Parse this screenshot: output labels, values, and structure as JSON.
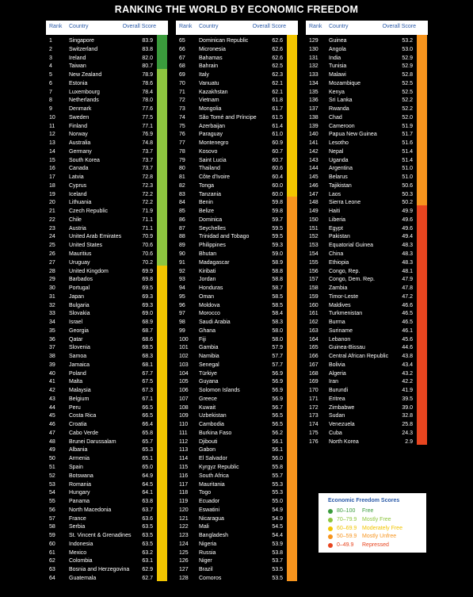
{
  "title": "RANKING THE WORLD BY ECONOMIC FREEDOM",
  "headers": [
    "Rank",
    "Country",
    "Overall Score"
  ],
  "columns": [
    [
      [
        "1",
        "Singapore",
        "83.9"
      ],
      [
        "2",
        "Switzerland",
        "83.8"
      ],
      [
        "3",
        "Ireland",
        "82.0"
      ],
      [
        "4",
        "Taiwan",
        "80.7"
      ],
      [
        "5",
        "New Zealand",
        "78.9"
      ],
      [
        "6",
        "Estonia",
        "78.6"
      ],
      [
        "7",
        "Luxembourg",
        "78.4"
      ],
      [
        "8",
        "Netherlands",
        "78.0"
      ],
      [
        "9",
        "Denmark",
        "77.6"
      ],
      [
        "10",
        "Sweden",
        "77.5"
      ],
      [
        "11",
        "Finland",
        "77.1"
      ],
      [
        "12",
        "Norway",
        "76.9"
      ],
      [
        "13",
        "Australia",
        "74.8"
      ],
      [
        "14",
        "Germany",
        "73.7"
      ],
      [
        "15",
        "South Korea",
        "73.7"
      ],
      [
        "16",
        "Canada",
        "73.7"
      ],
      [
        "17",
        "Latvia",
        "72.8"
      ],
      [
        "18",
        "Cyprus",
        "72.3"
      ],
      [
        "19",
        "Iceland",
        "72.2"
      ],
      [
        "20",
        "Lithuania",
        "72.2"
      ],
      [
        "21",
        "Czech Republic",
        "71.9"
      ],
      [
        "22",
        "Chile",
        "71.1"
      ],
      [
        "23",
        "Austria",
        "71.1"
      ],
      [
        "24",
        "United Arab Emirates",
        "70.9"
      ],
      [
        "25",
        "United States",
        "70.6"
      ],
      [
        "26",
        "Mauritius",
        "70.6"
      ],
      [
        "27",
        "Uruguay",
        "70.2"
      ],
      [
        "28",
        "United Kingdom",
        "69.9"
      ],
      [
        "29",
        "Barbados",
        "69.8"
      ],
      [
        "30",
        "Portugal",
        "69.5"
      ],
      [
        "31",
        "Japan",
        "69.3"
      ],
      [
        "32",
        "Bulgaria",
        "69.3"
      ],
      [
        "33",
        "Slovakia",
        "69.0"
      ],
      [
        "34",
        "Israel",
        "68.9"
      ],
      [
        "35",
        "Georgia",
        "68.7"
      ],
      [
        "36",
        "Qatar",
        "68.6"
      ],
      [
        "37",
        "Slovenia",
        "68.5"
      ],
      [
        "38",
        "Samoa",
        "68.3"
      ],
      [
        "39",
        "Jamaica",
        "68.1"
      ],
      [
        "40",
        "Poland",
        "67.7"
      ],
      [
        "41",
        "Malta",
        "67.5"
      ],
      [
        "42",
        "Malaysia",
        "67.3"
      ],
      [
        "43",
        "Belgium",
        "67.1"
      ],
      [
        "44",
        "Peru",
        "66.5"
      ],
      [
        "45",
        "Costa Rica",
        "66.5"
      ],
      [
        "46",
        "Croatia",
        "66.4"
      ],
      [
        "47",
        "Cabo Verde",
        "65.8"
      ],
      [
        "48",
        "Brunei Darussalam",
        "65.7"
      ],
      [
        "49",
        "Albania",
        "65.3"
      ],
      [
        "50",
        "Armenia",
        "65.1"
      ],
      [
        "51",
        "Spain",
        "65.0"
      ],
      [
        "52",
        "Botswana",
        "64.9"
      ],
      [
        "53",
        "Romania",
        "64.5"
      ],
      [
        "54",
        "Hungary",
        "64.1"
      ],
      [
        "55",
        "Panama",
        "63.8"
      ],
      [
        "56",
        "North Macedonia",
        "63.7"
      ],
      [
        "57",
        "France",
        "63.6"
      ],
      [
        "58",
        "Serbia",
        "63.5"
      ],
      [
        "59",
        "St. Vincent & Grenadines",
        "63.5"
      ],
      [
        "60",
        "Indonesia",
        "63.5"
      ],
      [
        "61",
        "Mexico",
        "63.2"
      ],
      [
        "62",
        "Colombia",
        "63.1"
      ],
      [
        "63",
        "Bosnia and Herzegovina",
        "62.9"
      ],
      [
        "64",
        "Guatemala",
        "62.7"
      ]
    ],
    [
      [
        "65",
        "Dominican Republic",
        "62.6"
      ],
      [
        "66",
        "Micronesia",
        "62.6"
      ],
      [
        "67",
        "Bahamas",
        "62.6"
      ],
      [
        "68",
        "Bahrain",
        "62.5"
      ],
      [
        "69",
        "Italy",
        "62.3"
      ],
      [
        "70",
        "Vanuatu",
        "62.1"
      ],
      [
        "71",
        "Kazakhstan",
        "62.1"
      ],
      [
        "72",
        "Vietnam",
        "61.8"
      ],
      [
        "73",
        "Mongolia",
        "61.7"
      ],
      [
        "74",
        "São Tomé and Príncipe",
        "61.5"
      ],
      [
        "75",
        "Azerbaijan",
        "61.4"
      ],
      [
        "76",
        "Paraguay",
        "61.0"
      ],
      [
        "77",
        "Montenegro",
        "60.9"
      ],
      [
        "78",
        "Kosovo",
        "60.7"
      ],
      [
        "79",
        "Saint Lucia",
        "60.7"
      ],
      [
        "80",
        "Thailand",
        "60.6"
      ],
      [
        "81",
        "Côte d'Ivoire",
        "60.4"
      ],
      [
        "82",
        "Tonga",
        "60.0"
      ],
      [
        "83",
        "Tanzania",
        "60.0"
      ],
      [
        "84",
        "Benin",
        "59.8"
      ],
      [
        "85",
        "Belize",
        "59.8"
      ],
      [
        "86",
        "Dominica",
        "59.7"
      ],
      [
        "87",
        "Seychelles",
        "59.5"
      ],
      [
        "88",
        "Trinidad and Tobago",
        "59.5"
      ],
      [
        "89",
        "Philippines",
        "59.3"
      ],
      [
        "90",
        "Bhutan",
        "59.0"
      ],
      [
        "91",
        "Madagascar",
        "58.9"
      ],
      [
        "92",
        "Kiribati",
        "58.8"
      ],
      [
        "93",
        "Jordan",
        "58.8"
      ],
      [
        "94",
        "Honduras",
        "58.7"
      ],
      [
        "95",
        "Oman",
        "58.5"
      ],
      [
        "96",
        "Moldova",
        "58.5"
      ],
      [
        "97",
        "Morocco",
        "58.4"
      ],
      [
        "98",
        "Saudi Arabia",
        "58.3"
      ],
      [
        "99",
        "Ghana",
        "58.0"
      ],
      [
        "100",
        "Fiji",
        "58.0"
      ],
      [
        "101",
        "Gambia",
        "57.9"
      ],
      [
        "102",
        "Namibia",
        "57.7"
      ],
      [
        "103",
        "Senegal",
        "57.7"
      ],
      [
        "104",
        "Türkiye",
        "56.9"
      ],
      [
        "105",
        "Guyana",
        "56.9"
      ],
      [
        "106",
        "Solomon Islands",
        "56.9"
      ],
      [
        "107",
        "Greece",
        "56.9"
      ],
      [
        "108",
        "Kuwait",
        "56.7"
      ],
      [
        "109",
        "Uzbekistan",
        "56.5"
      ],
      [
        "110",
        "Cambodia",
        "56.5"
      ],
      [
        "111",
        "Burkina Faso",
        "56.2"
      ],
      [
        "112",
        "Djibouti",
        "56.1"
      ],
      [
        "113",
        "Gabon",
        "56.1"
      ],
      [
        "114",
        "El Salvador",
        "56.0"
      ],
      [
        "115",
        "Kyrgyz Republic",
        "55.8"
      ],
      [
        "116",
        "South Africa",
        "55.7"
      ],
      [
        "117",
        "Mauritania",
        "55.3"
      ],
      [
        "118",
        "Togo",
        "55.3"
      ],
      [
        "119",
        "Ecuador",
        "55.0"
      ],
      [
        "120",
        "Eswatini",
        "54.9"
      ],
      [
        "121",
        "Nicaragua",
        "54.9"
      ],
      [
        "122",
        "Mali",
        "54.5"
      ],
      [
        "123",
        "Bangladesh",
        "54.4"
      ],
      [
        "124",
        "Nigeria",
        "53.9"
      ],
      [
        "125",
        "Russia",
        "53.8"
      ],
      [
        "126",
        "Niger",
        "53.7"
      ],
      [
        "127",
        "Brazil",
        "53.5"
      ],
      [
        "128",
        "Comoros",
        "53.5"
      ]
    ],
    [
      [
        "129",
        "Guinea",
        "53.2"
      ],
      [
        "130",
        "Angola",
        "53.0"
      ],
      [
        "131",
        "India",
        "52.9"
      ],
      [
        "132",
        "Tunisia",
        "52.9"
      ],
      [
        "133",
        "Malawi",
        "52.8"
      ],
      [
        "134",
        "Mozambique",
        "52.5"
      ],
      [
        "135",
        "Kenya",
        "52.5"
      ],
      [
        "136",
        "Sri Lanka",
        "52.2"
      ],
      [
        "137",
        "Rwanda",
        "52.2"
      ],
      [
        "138",
        "Chad",
        "52.0"
      ],
      [
        "139",
        "Cameroon",
        "51.9"
      ],
      [
        "140",
        "Papua New Guinea",
        "51.7"
      ],
      [
        "141",
        "Lesotho",
        "51.6"
      ],
      [
        "142",
        "Nepal",
        "51.4"
      ],
      [
        "143",
        "Uganda",
        "51.4"
      ],
      [
        "144",
        "Argentina",
        "51.0"
      ],
      [
        "145",
        "Belarus",
        "51.0"
      ],
      [
        "146",
        "Tajikistan",
        "50.6"
      ],
      [
        "147",
        "Laos",
        "50.3"
      ],
      [
        "148",
        "Sierra Leone",
        "50.2"
      ],
      [
        "149",
        "Haiti",
        "49.9"
      ],
      [
        "150",
        "Liberia",
        "49.6"
      ],
      [
        "151",
        "Egypt",
        "49.6"
      ],
      [
        "152",
        "Pakistan",
        "49.4"
      ],
      [
        "153",
        "Equatorial Guinea",
        "48.3"
      ],
      [
        "154",
        "China",
        "48.3"
      ],
      [
        "155",
        "Ethiopia",
        "48.3"
      ],
      [
        "156",
        "Congo, Rep.",
        "48.1"
      ],
      [
        "157",
        "Congo, Dem. Rep.",
        "47.9"
      ],
      [
        "158",
        "Zambia",
        "47.8"
      ],
      [
        "159",
        "Timor-Leste",
        "47.2"
      ],
      [
        "160",
        "Maldives",
        "46.6"
      ],
      [
        "161",
        "Turkmenistan",
        "46.5"
      ],
      [
        "162",
        "Burma",
        "46.5"
      ],
      [
        "163",
        "Suriname",
        "46.1"
      ],
      [
        "164",
        "Lebanon",
        "45.6"
      ],
      [
        "165",
        "Guinea-Bissau",
        "44.6"
      ],
      [
        "166",
        "Central African Republic",
        "43.8"
      ],
      [
        "167",
        "Bolivia",
        "43.4"
      ],
      [
        "168",
        "Algeria",
        "43.2"
      ],
      [
        "169",
        "Iran",
        "42.2"
      ],
      [
        "170",
        "Burundi",
        "41.9"
      ],
      [
        "171",
        "Eritrea",
        "39.5"
      ],
      [
        "172",
        "Zimbabwe",
        "39.0"
      ],
      [
        "173",
        "Sudan",
        "32.8"
      ],
      [
        "174",
        "Venezuela",
        "25.8"
      ],
      [
        "175",
        "Cuba",
        "24.3"
      ],
      [
        "176",
        "North Korea",
        "2.9"
      ]
    ]
  ],
  "legend": {
    "title": "Economic Freedom Scores",
    "items": [
      {
        "range": "80–100",
        "label": "Free",
        "color": "#3a9b3c"
      },
      {
        "range": "70–79.9",
        "label": "Mostly Free",
        "color": "#8dc63f"
      },
      {
        "range": "60–69.9",
        "label": "Moderately Free",
        "color": "#f2c500"
      },
      {
        "range": "50–59.9",
        "label": "Mostly Unfree",
        "color": "#f7941d"
      },
      {
        "range": "0–49.9",
        "label": "Repressed",
        "color": "#e8451f"
      }
    ]
  }
}
